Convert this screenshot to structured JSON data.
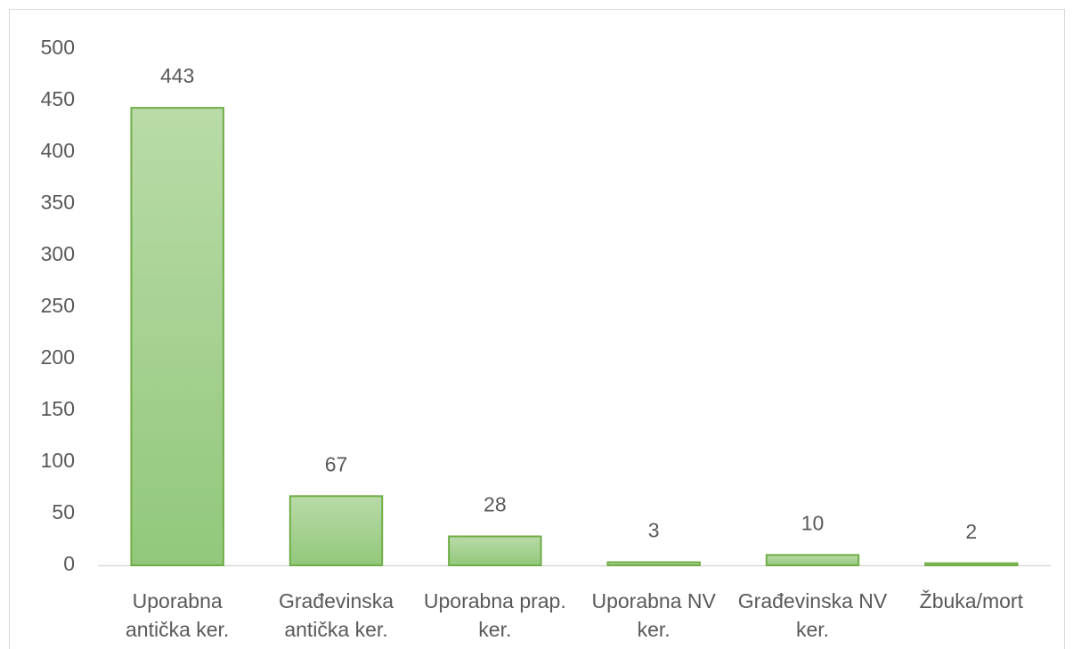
{
  "chart_data": {
    "type": "bar",
    "categories": [
      "Uporabna antička ker.",
      "Građevinska antička ker.",
      "Uporabna prap. ker.",
      "Uporabna NV ker.",
      "Građevinska NV ker.",
      "Žbuka/mort"
    ],
    "values": [
      443,
      67,
      28,
      3,
      10,
      2
    ],
    "color": "#a9d18e",
    "ylim": [
      0,
      500
    ],
    "yticks": [
      0,
      50,
      100,
      150,
      200,
      250,
      300,
      350,
      400,
      450,
      500
    ],
    "grid": false
  }
}
